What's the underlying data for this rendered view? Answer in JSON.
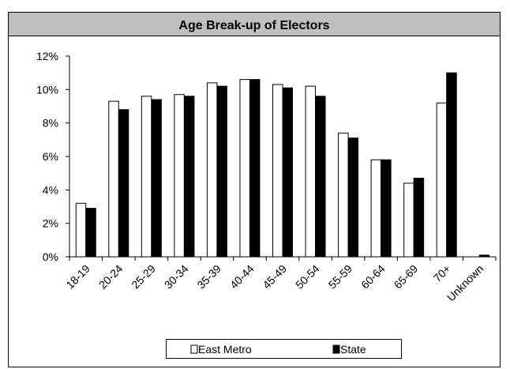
{
  "chart_data": {
    "type": "bar",
    "title": "Age Break-up of Electors",
    "categories": [
      "18-19",
      "20-24",
      "25-29",
      "30-34",
      "35-39",
      "40-44",
      "45-49",
      "50-54",
      "55-59",
      "60-64",
      "65-69",
      "70+",
      "Unknown"
    ],
    "series": [
      {
        "name": "East Metro",
        "color": "#ffffff",
        "values": [
          3.2,
          9.3,
          9.6,
          9.7,
          10.4,
          10.6,
          10.3,
          10.2,
          7.4,
          5.8,
          4.4,
          9.2,
          0.0
        ]
      },
      {
        "name": "State",
        "color": "#000000",
        "values": [
          2.9,
          8.8,
          9.4,
          9.6,
          10.2,
          10.6,
          10.1,
          9.6,
          7.1,
          5.8,
          4.7,
          11.0,
          0.1
        ]
      }
    ],
    "y_ticks": [
      "0%",
      "2%",
      "4%",
      "6%",
      "8%",
      "10%",
      "12%"
    ],
    "ylim": [
      0,
      12
    ],
    "xlabel": "",
    "ylabel": "",
    "grid": false,
    "legend_position": "bottom"
  }
}
